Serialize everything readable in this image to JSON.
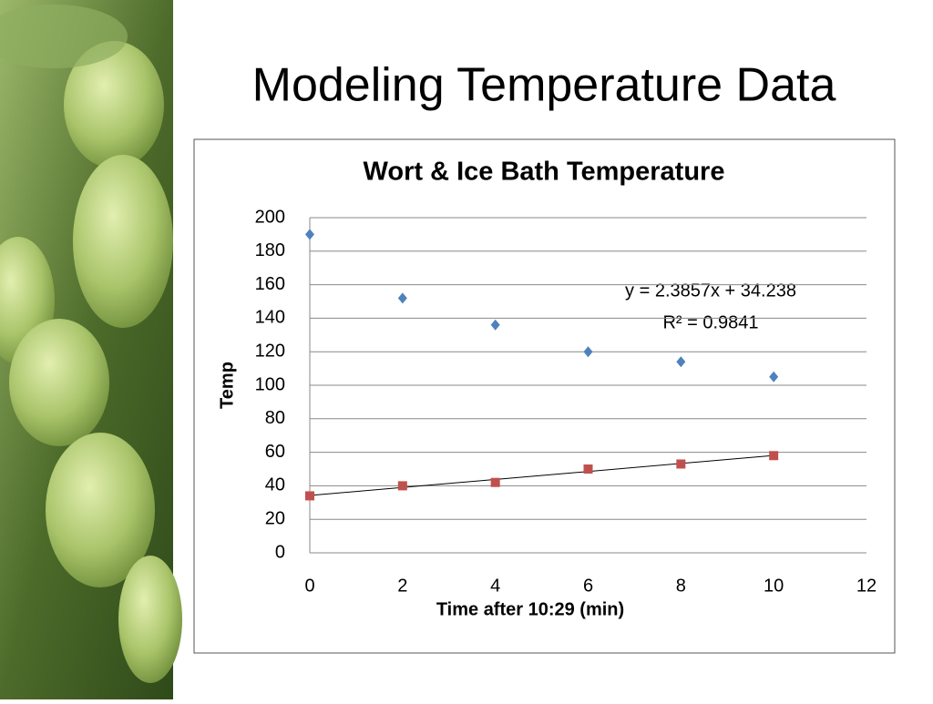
{
  "slide_title": "Modeling Temperature Data",
  "chart_data": {
    "type": "scatter",
    "title": "Wort & Ice Bath Temperature",
    "x_label": "Time after 10:29 (min)",
    "y_label": "Temp",
    "x": [
      0,
      2,
      4,
      6,
      8,
      10
    ],
    "series": [
      {
        "color": "#4f81bd",
        "marker": "diamond",
        "values": [
          190,
          152,
          136,
          120,
          114,
          105
        ]
      },
      {
        "color": "#c0504d",
        "marker": "square",
        "values": [
          34,
          40,
          42,
          50,
          53,
          58
        ]
      }
    ],
    "trendline": {
      "series": 1,
      "slope": 2.3857,
      "intercept": 34.238,
      "equation": "y = 2.3857x + 34.238",
      "r_squared_label": "R² = 0.9841"
    },
    "xlim": [
      0,
      12
    ],
    "xticks": [
      0,
      2,
      4,
      6,
      8,
      10,
      12
    ],
    "ylim": [
      0,
      200
    ],
    "yticks": [
      0,
      20,
      40,
      60,
      80,
      100,
      120,
      140,
      160,
      180,
      200
    ],
    "grid": true
  }
}
